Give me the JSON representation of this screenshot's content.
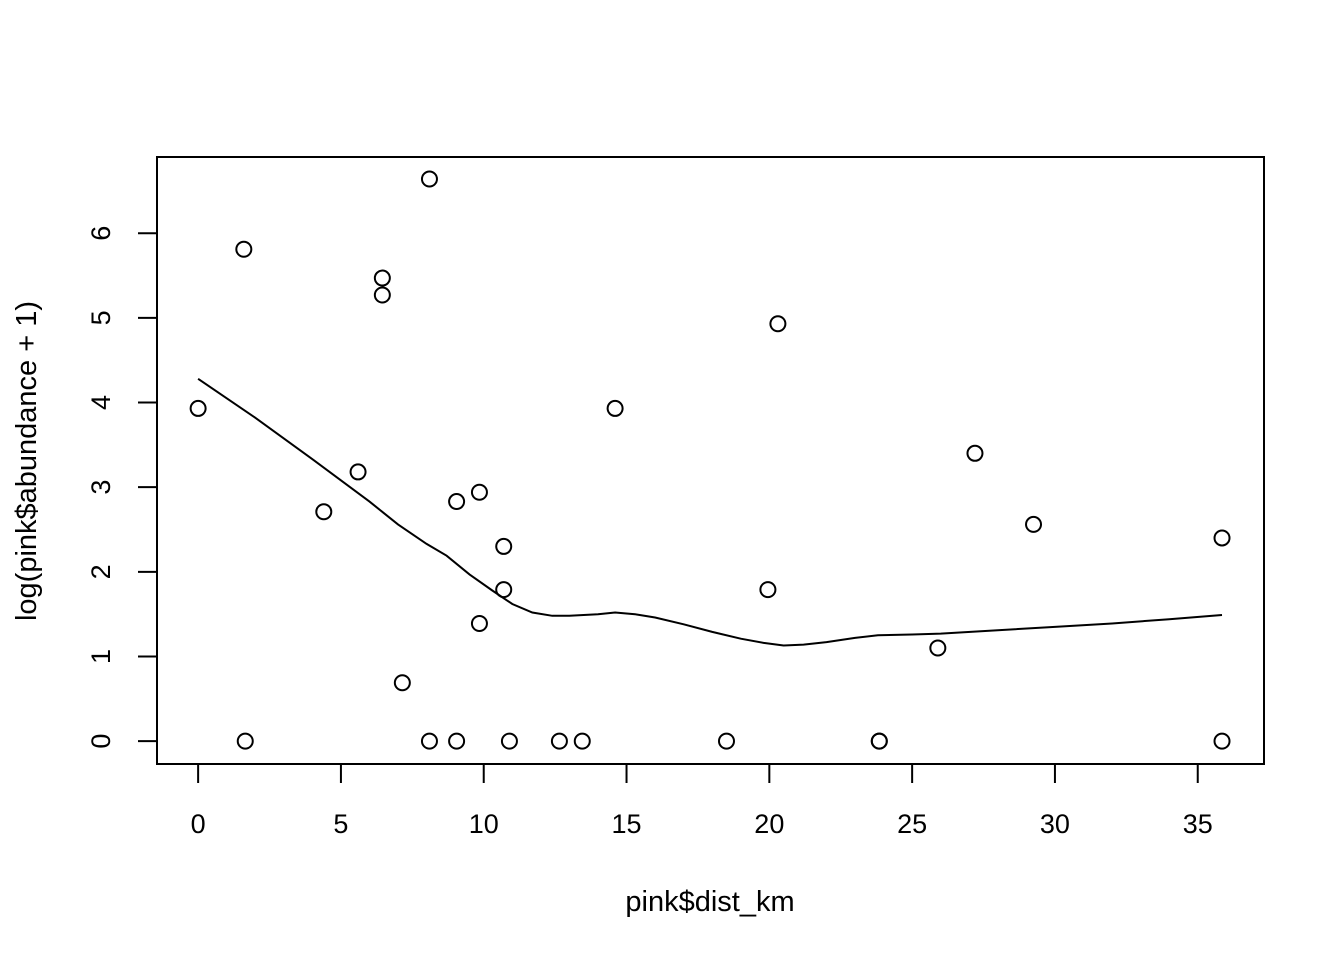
{
  "chart_data": {
    "type": "scatter",
    "title": "",
    "xlabel": "pink$dist_km",
    "ylabel": "log(pink$abundance + 1)",
    "xlim": [
      -1.44,
      37.32
    ],
    "ylim": [
      -0.27,
      6.9
    ],
    "x_ticks": [
      0,
      5,
      10,
      15,
      20,
      25,
      30,
      35
    ],
    "y_ticks": [
      0,
      1,
      2,
      3,
      4,
      5,
      6
    ],
    "grid": false,
    "legend": "none",
    "colors": {
      "points": "#000000",
      "line": "#000000",
      "background": "#ffffff"
    },
    "points": {
      "x": [
        0.0,
        1.6,
        1.65,
        4.4,
        5.6,
        6.45,
        6.45,
        7.15,
        8.1,
        8.1,
        9.05,
        9.05,
        9.85,
        9.85,
        10.7,
        10.7,
        10.9,
        12.65,
        13.45,
        14.6,
        18.5,
        19.95,
        20.3,
        23.85,
        23.85,
        25.9,
        27.2,
        29.25,
        35.85,
        35.85
      ],
      "y": [
        3.93,
        5.81,
        0.0,
        2.71,
        3.18,
        5.47,
        5.27,
        0.69,
        6.64,
        0.0,
        2.83,
        0.0,
        2.94,
        1.39,
        2.3,
        1.79,
        0.0,
        0.0,
        0.0,
        3.93,
        0.0,
        1.79,
        4.93,
        0.0,
        0.0,
        1.1,
        3.4,
        2.56,
        2.4,
        0.0
      ]
    },
    "smooth_line": {
      "x": [
        0.0,
        2.0,
        4.0,
        6.0,
        7.0,
        8.0,
        8.7,
        9.5,
        10.3,
        11.0,
        11.7,
        12.4,
        13.0,
        14.0,
        14.6,
        15.3,
        16.0,
        17.0,
        18.0,
        19.0,
        19.8,
        20.5,
        21.2,
        22.0,
        23.0,
        23.8,
        25.0,
        26.0,
        28.0,
        30.0,
        32.0,
        34.0,
        35.85
      ],
      "y": [
        4.28,
        3.82,
        3.33,
        2.83,
        2.56,
        2.33,
        2.19,
        1.97,
        1.78,
        1.62,
        1.52,
        1.48,
        1.48,
        1.5,
        1.52,
        1.5,
        1.46,
        1.38,
        1.29,
        1.21,
        1.16,
        1.13,
        1.14,
        1.17,
        1.22,
        1.25,
        1.26,
        1.27,
        1.31,
        1.35,
        1.39,
        1.44,
        1.49
      ]
    }
  }
}
